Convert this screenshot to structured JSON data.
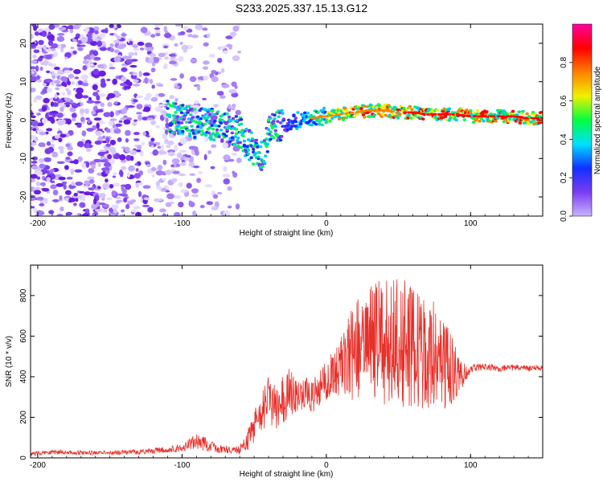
{
  "title": "S233.2025.337.15.13.G12",
  "colors": {
    "snr_line": "#e8302a",
    "spectrogram_low": "#7a3cf0",
    "axis": "#000000",
    "colorbar_stops": [
      "#c8b4ff",
      "#7a3cf0",
      "#1030ff",
      "#00e0ff",
      "#00ff40",
      "#f0f000",
      "#ff8000",
      "#ff0000",
      "#ff00a0"
    ]
  },
  "chart_data": [
    {
      "type": "heatmap",
      "name": "spectrogram",
      "xlabel": "Height of straight line (km)",
      "ylabel": "Frequency (Hz)",
      "xlim": [
        -205,
        150
      ],
      "ylim": [
        -25,
        25
      ],
      "xticks": [
        -200,
        -100,
        0,
        100
      ],
      "xtick_labels": [
        "-200",
        "-100",
        "0",
        "100"
      ],
      "yticks": [
        -20,
        -10,
        0,
        10,
        20
      ],
      "ytick_labels": [
        "-20",
        "-10",
        "0",
        "10",
        "20"
      ],
      "ridge": {
        "x": [
          -110,
          -100,
          -90,
          -80,
          -70,
          -60,
          -55,
          -50,
          -45,
          -42,
          -40,
          -35,
          -30,
          -20,
          -10,
          0,
          10,
          20,
          30,
          40,
          50,
          60,
          70,
          80,
          90,
          100,
          110,
          120,
          130,
          140,
          150
        ],
        "y": [
          1,
          0,
          -1,
          -1,
          -2,
          -3,
          -6,
          -8,
          -9,
          -7,
          -3,
          -2,
          -1,
          0,
          0.5,
          1,
          1.5,
          2,
          2.5,
          2.5,
          2,
          2,
          1.5,
          1.5,
          1.5,
          1,
          1,
          1,
          1,
          0.5,
          0.5
        ]
      },
      "colorbar": {
        "label": "Normalized spectral amplitude",
        "range": [
          0,
          1
        ],
        "ticks": [
          0.0,
          0.2,
          0.4,
          0.6,
          0.8
        ],
        "tick_labels": [
          "0.0",
          "0.2",
          "0.4",
          "0.6",
          "0.8"
        ]
      }
    },
    {
      "type": "line",
      "name": "snr",
      "xlabel": "Height of straight line (km)",
      "ylabel": "SNR (10 * v/v)",
      "xlim": [
        -205,
        150
      ],
      "ylim": [
        0,
        950
      ],
      "xticks": [
        -200,
        -100,
        0,
        100
      ],
      "xtick_labels": [
        "-200",
        "-100",
        "0",
        "100"
      ],
      "yticks": [
        0,
        200,
        400,
        600,
        800
      ],
      "ytick_labels": [
        "0",
        "200",
        "400",
        "600",
        "800"
      ],
      "series": [
        {
          "name": "SNR",
          "x": [
            -205,
            -190,
            -170,
            -150,
            -130,
            -110,
            -100,
            -90,
            -80,
            -70,
            -60,
            -55,
            -50,
            -45,
            -40,
            -35,
            -30,
            -25,
            -20,
            -15,
            -10,
            -5,
            0,
            5,
            10,
            15,
            20,
            25,
            30,
            35,
            40,
            45,
            50,
            55,
            60,
            65,
            70,
            75,
            80,
            85,
            90,
            95,
            100,
            110,
            120,
            130,
            140,
            150
          ],
          "values": [
            20,
            30,
            25,
            25,
            30,
            40,
            50,
            80,
            60,
            40,
            40,
            80,
            150,
            220,
            300,
            250,
            280,
            330,
            300,
            320,
            300,
            340,
            380,
            420,
            450,
            500,
            520,
            550,
            560,
            580,
            560,
            580,
            550,
            560,
            540,
            520,
            500,
            480,
            460,
            440,
            420,
            410,
            440,
            450,
            440,
            445,
            440,
            445
          ],
          "amplitude": [
            10,
            12,
            10,
            10,
            12,
            15,
            20,
            40,
            30,
            20,
            20,
            50,
            80,
            100,
            120,
            120,
            120,
            120,
            80,
            80,
            80,
            90,
            100,
            110,
            150,
            200,
            250,
            260,
            280,
            300,
            300,
            320,
            330,
            320,
            300,
            280,
            260,
            240,
            220,
            200,
            120,
            60,
            20,
            15,
            15,
            15,
            15,
            15
          ]
        }
      ]
    }
  ]
}
